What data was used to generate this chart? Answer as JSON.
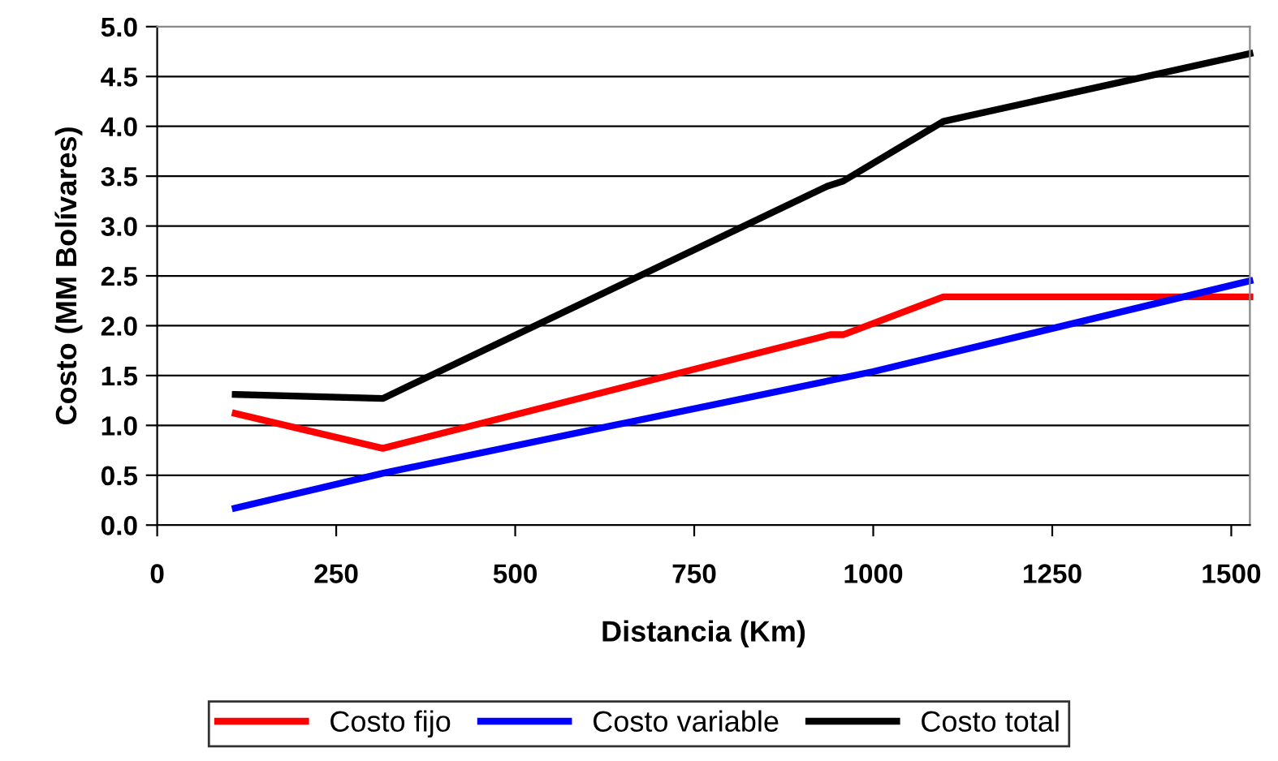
{
  "chart_data": {
    "type": "line",
    "xlabel": "Distancia (Km)",
    "ylabel": "Costo (MM Bolívares)",
    "xlim": [
      0,
      1526
    ],
    "xticks": [
      0,
      250,
      500,
      750,
      1000,
      1250,
      1500
    ],
    "ylim": [
      0,
      5
    ],
    "yticks": [
      {
        "value": 0,
        "label": "0.0"
      },
      {
        "value": 0.5,
        "label": "0.5"
      },
      {
        "value": 1,
        "label": "1.0"
      },
      {
        "value": 1.5,
        "label": "1.5"
      },
      {
        "value": 2,
        "label": "2.0"
      },
      {
        "value": 2.5,
        "label": "2.5"
      },
      {
        "value": 3,
        "label": "3.0"
      },
      {
        "value": 3.5,
        "label": "3.5"
      },
      {
        "value": 4,
        "label": "4.0"
      },
      {
        "value": 4.5,
        "label": "4.5"
      },
      {
        "value": 5,
        "label": "5.0"
      }
    ],
    "grid": "y",
    "legend": "bottom",
    "marker": "none",
    "line_style": "solid",
    "series": [
      {
        "name": "Costo fijo",
        "color": "#ff0000",
        "x": [
          109,
          315,
          940,
          958,
          1098,
          1526
        ],
        "values": [
          1.12,
          0.77,
          1.91,
          1.91,
          2.29,
          2.29
        ]
      },
      {
        "name": "Costo variable",
        "color": "#0000ff",
        "x": [
          109,
          315,
          1000,
          1526
        ],
        "values": [
          0.17,
          0.52,
          1.54,
          2.45
        ]
      },
      {
        "name": "Costo total",
        "color": "#000000",
        "x": [
          109,
          315,
          936,
          958,
          1098,
          1526
        ],
        "values": [
          1.31,
          1.27,
          3.4,
          3.45,
          4.05,
          4.73
        ]
      }
    ]
  }
}
